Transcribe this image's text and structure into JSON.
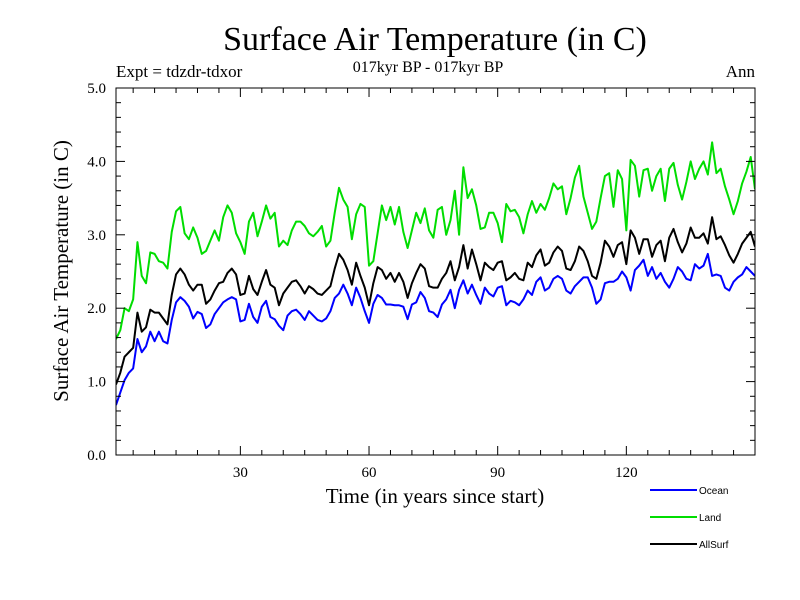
{
  "chart_data": {
    "type": "line",
    "title": "Surface Air Temperature (in C)",
    "subtitle": "017kyr BP - 017kyr BP",
    "experiment_label": "Expt = tdzdr-tdxor",
    "period_label": "Ann",
    "xlabel": "Time (in years since start)",
    "ylabel": "Surface Air Temperature (in C)",
    "xlim": [
      1,
      150
    ],
    "ylim": [
      0.0,
      5.0
    ],
    "xticks": [
      30,
      60,
      90,
      120
    ],
    "xtick_labels": [
      "30",
      "60",
      "90",
      "120"
    ],
    "yticks": [
      0,
      1,
      2,
      3,
      4,
      5
    ],
    "ytick_labels": [
      "0.0",
      "1.0",
      "2.0",
      "3.0",
      "4.0",
      "5.0"
    ],
    "x": [
      1,
      2,
      3,
      4,
      5,
      6,
      7,
      8,
      9,
      10,
      11,
      12,
      13,
      14,
      15,
      16,
      17,
      18,
      19,
      20,
      21,
      22,
      23,
      24,
      25,
      26,
      27,
      28,
      29,
      30,
      31,
      32,
      33,
      34,
      35,
      36,
      37,
      38,
      39,
      40,
      41,
      42,
      43,
      44,
      45,
      46,
      47,
      48,
      49,
      50,
      51,
      52,
      53,
      54,
      55,
      56,
      57,
      58,
      59,
      60,
      61,
      62,
      63,
      64,
      65,
      66,
      67,
      68,
      69,
      70,
      71,
      72,
      73,
      74,
      75,
      76,
      77,
      78,
      79,
      80,
      81,
      82,
      83,
      84,
      85,
      86,
      87,
      88,
      89,
      90,
      91,
      92,
      93,
      94,
      95,
      96,
      97,
      98,
      99,
      100,
      101,
      102,
      103,
      104,
      105,
      106,
      107,
      108,
      109,
      110,
      111,
      112,
      113,
      114,
      115,
      116,
      117,
      118,
      119,
      120,
      121,
      122,
      123,
      124,
      125,
      126,
      127,
      128,
      129,
      130,
      131,
      132,
      133,
      134,
      135,
      136,
      137,
      138,
      139,
      140,
      141,
      142,
      143,
      144,
      145,
      146,
      147,
      148,
      149,
      150
    ],
    "series": [
      {
        "name": "Ocean",
        "color": "#0000ff",
        "values": [
          0.68,
          0.85,
          1.02,
          1.12,
          1.18,
          1.58,
          1.4,
          1.48,
          1.68,
          1.55,
          1.68,
          1.55,
          1.52,
          1.84,
          2.08,
          2.15,
          2.1,
          2.02,
          1.86,
          1.95,
          1.92,
          1.73,
          1.78,
          1.92,
          2.0,
          2.08,
          2.12,
          2.15,
          2.12,
          1.82,
          1.84,
          2.06,
          1.88,
          1.8,
          2.02,
          2.1,
          1.88,
          1.85,
          1.76,
          1.7,
          1.9,
          1.96,
          1.98,
          1.92,
          1.84,
          1.96,
          1.9,
          1.84,
          1.82,
          1.86,
          1.96,
          2.14,
          2.2,
          2.32,
          2.2,
          2.04,
          2.28,
          2.14,
          1.96,
          1.8,
          2.06,
          2.18,
          2.14,
          2.05,
          2.05,
          2.04,
          2.04,
          2.02,
          1.85,
          2.05,
          2.08,
          2.22,
          2.14,
          1.96,
          1.94,
          1.88,
          2.05,
          2.12,
          2.25,
          2.0,
          2.25,
          2.38,
          2.2,
          2.32,
          2.18,
          2.06,
          2.28,
          2.2,
          2.16,
          2.28,
          2.3,
          2.04,
          2.1,
          2.08,
          2.04,
          2.12,
          2.24,
          2.18,
          2.36,
          2.42,
          2.24,
          2.28,
          2.4,
          2.44,
          2.4,
          2.24,
          2.2,
          2.3,
          2.36,
          2.42,
          2.42,
          2.28,
          2.06,
          2.12,
          2.34,
          2.36,
          2.36,
          2.4,
          2.5,
          2.42,
          2.24,
          2.52,
          2.58,
          2.66,
          2.44,
          2.56,
          2.4,
          2.48,
          2.36,
          2.28,
          2.4,
          2.56,
          2.5,
          2.4,
          2.38,
          2.6,
          2.54,
          2.58,
          2.74,
          2.44,
          2.46,
          2.44,
          2.28,
          2.24,
          2.36,
          2.42,
          2.46,
          2.56,
          2.5,
          2.44
        ]
      },
      {
        "name": "Land",
        "color": "#00dd00",
        "values": [
          1.58,
          1.7,
          2.0,
          1.96,
          2.12,
          2.9,
          2.44,
          2.34,
          2.76,
          2.74,
          2.64,
          2.62,
          2.54,
          3.04,
          3.32,
          3.38,
          3.02,
          2.94,
          3.1,
          2.96,
          2.74,
          2.78,
          2.92,
          3.06,
          2.92,
          3.24,
          3.4,
          3.3,
          3.02,
          2.9,
          2.74,
          3.18,
          3.3,
          2.98,
          3.18,
          3.4,
          3.22,
          3.3,
          2.84,
          2.92,
          2.86,
          3.06,
          3.18,
          3.18,
          3.12,
          3.02,
          2.98,
          3.04,
          3.12,
          2.84,
          2.92,
          3.3,
          3.64,
          3.48,
          3.38,
          2.94,
          3.28,
          3.42,
          3.38,
          2.58,
          2.64,
          3.02,
          3.4,
          3.2,
          3.38,
          3.14,
          3.38,
          3.04,
          2.82,
          3.06,
          3.3,
          3.16,
          3.36,
          3.06,
          2.96,
          3.34,
          3.38,
          3.0,
          3.2,
          3.6,
          3.0,
          3.92,
          3.5,
          3.62,
          3.4,
          3.08,
          3.1,
          3.3,
          3.3,
          3.16,
          2.9,
          3.42,
          3.32,
          3.34,
          3.24,
          3.02,
          3.28,
          3.46,
          3.3,
          3.42,
          3.34,
          3.5,
          3.7,
          3.62,
          3.66,
          3.28,
          3.5,
          3.78,
          3.94,
          3.52,
          3.3,
          3.08,
          3.18,
          3.5,
          3.8,
          3.84,
          3.38,
          3.88,
          3.76,
          3.06,
          4.02,
          3.94,
          3.52,
          3.88,
          3.9,
          3.6,
          3.8,
          3.9,
          3.46,
          3.9,
          3.98,
          3.68,
          3.48,
          3.72,
          4.0,
          3.76,
          3.9,
          4.0,
          3.82,
          4.26,
          3.84,
          3.9,
          3.66,
          3.48,
          3.28,
          3.46,
          3.7,
          3.86,
          4.06,
          3.62
        ]
      },
      {
        "name": "AllSurf",
        "color": "#000000",
        "values": [
          0.96,
          1.12,
          1.34,
          1.4,
          1.46,
          1.94,
          1.68,
          1.74,
          1.98,
          1.94,
          1.94,
          1.86,
          1.78,
          2.18,
          2.46,
          2.54,
          2.46,
          2.32,
          2.24,
          2.32,
          2.32,
          2.06,
          2.12,
          2.24,
          2.34,
          2.36,
          2.48,
          2.54,
          2.46,
          2.18,
          2.2,
          2.44,
          2.26,
          2.18,
          2.36,
          2.52,
          2.32,
          2.28,
          2.04,
          2.2,
          2.28,
          2.36,
          2.38,
          2.3,
          2.2,
          2.3,
          2.26,
          2.2,
          2.18,
          2.24,
          2.3,
          2.54,
          2.74,
          2.66,
          2.52,
          2.32,
          2.62,
          2.44,
          2.28,
          2.04,
          2.34,
          2.56,
          2.52,
          2.4,
          2.48,
          2.36,
          2.48,
          2.36,
          2.14,
          2.34,
          2.48,
          2.6,
          2.54,
          2.3,
          2.28,
          2.28,
          2.4,
          2.48,
          2.64,
          2.38,
          2.56,
          2.86,
          2.54,
          2.8,
          2.6,
          2.38,
          2.62,
          2.56,
          2.52,
          2.62,
          2.64,
          2.38,
          2.42,
          2.48,
          2.4,
          2.38,
          2.62,
          2.56,
          2.72,
          2.8,
          2.58,
          2.62,
          2.76,
          2.84,
          2.78,
          2.54,
          2.52,
          2.64,
          2.84,
          2.78,
          2.64,
          2.44,
          2.4,
          2.62,
          2.92,
          2.84,
          2.7,
          2.86,
          2.9,
          2.6,
          3.06,
          2.96,
          2.74,
          2.94,
          2.94,
          2.7,
          2.86,
          2.92,
          2.64,
          2.96,
          3.08,
          2.9,
          2.76,
          2.88,
          3.1,
          2.96,
          2.96,
          3.02,
          2.88,
          3.24,
          2.94,
          2.98,
          2.86,
          2.72,
          2.62,
          2.74,
          2.88,
          2.96,
          3.04,
          2.84
        ]
      }
    ],
    "legend_position": "bottom-right",
    "grid": false
  }
}
